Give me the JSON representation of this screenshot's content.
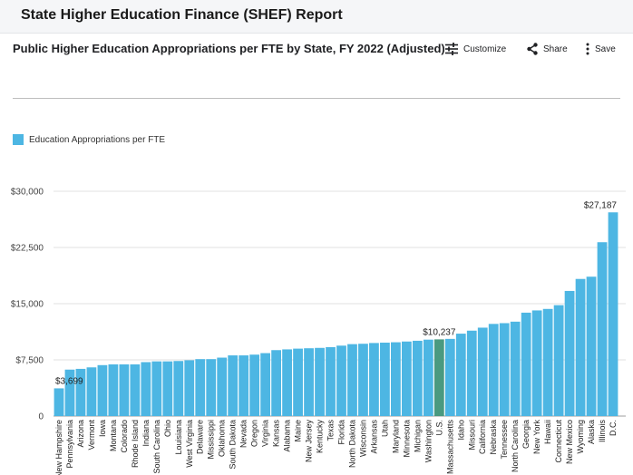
{
  "header": {
    "title": "State Higher Education Finance (SHEF) Report"
  },
  "toolbar": {
    "customize_label": "Customize",
    "share_label": "Share",
    "save_label": "Save",
    "icons": [
      "sliders-icon",
      "share-icon",
      "more-vertical-icon"
    ]
  },
  "colors": {
    "bar": "#4db6e3",
    "highlight": "#4a9a80",
    "grid": "#e0e0e0",
    "axis": "#9e9e9e"
  },
  "chart_data": {
    "type": "bar",
    "title": "Public Higher Education Appropriations per FTE by State, FY 2022 (Adjusted)",
    "legend": {
      "label": "Education Appropriations per FTE",
      "placement": "top-left"
    },
    "highlight_category": "U.S.",
    "ylim": [
      0,
      30000
    ],
    "yticks": [
      0,
      7500,
      15000,
      22500,
      30000
    ],
    "ytick_labels": [
      "0",
      "$7,500",
      "$15,000",
      "$22,500",
      "$30,000"
    ],
    "grid": true,
    "data_labels": [
      {
        "category": "New Hampshire",
        "text": "$3,699"
      },
      {
        "category": "U.S.",
        "text": "$10,237"
      },
      {
        "category": "D.C.",
        "text": "$27,187"
      }
    ],
    "categories": [
      "New Hampshire",
      "Pennsylvania",
      "Arizona",
      "Vermont",
      "Iowa",
      "Montana",
      "Colorado",
      "Rhode Island",
      "Indiana",
      "South Carolina",
      "Ohio",
      "Louisiana",
      "West Virginia",
      "Delaware",
      "Mississippi",
      "Oklahoma",
      "South Dakota",
      "Nevada",
      "Oregon",
      "Virginia",
      "Kansas",
      "Alabama",
      "Maine",
      "New Jersey",
      "Kentucky",
      "Texas",
      "Florida",
      "North Dakota",
      "Wisconsin",
      "Arkansas",
      "Utah",
      "Maryland",
      "Minnesota",
      "Michigan",
      "Washington",
      "U.S.",
      "Massachusetts",
      "Idaho",
      "Missouri",
      "California",
      "Nebraska",
      "Tennessee",
      "North Carolina",
      "Georgia",
      "New York",
      "Hawaii",
      "Connecticut",
      "New Mexico",
      "Wyoming",
      "Alaska",
      "Illinois",
      "D.C."
    ],
    "values": [
      3699,
      6200,
      6300,
      6500,
      6800,
      6900,
      6900,
      6900,
      7200,
      7300,
      7300,
      7350,
      7450,
      7600,
      7600,
      7800,
      8100,
      8100,
      8200,
      8400,
      8800,
      8900,
      9000,
      9050,
      9100,
      9200,
      9400,
      9600,
      9650,
      9750,
      9800,
      9850,
      9950,
      10050,
      10200,
      10237,
      10300,
      11000,
      11400,
      11800,
      12300,
      12400,
      12600,
      13800,
      14100,
      14300,
      14800,
      16700,
      18300,
      18600,
      23200,
      27187
    ]
  }
}
